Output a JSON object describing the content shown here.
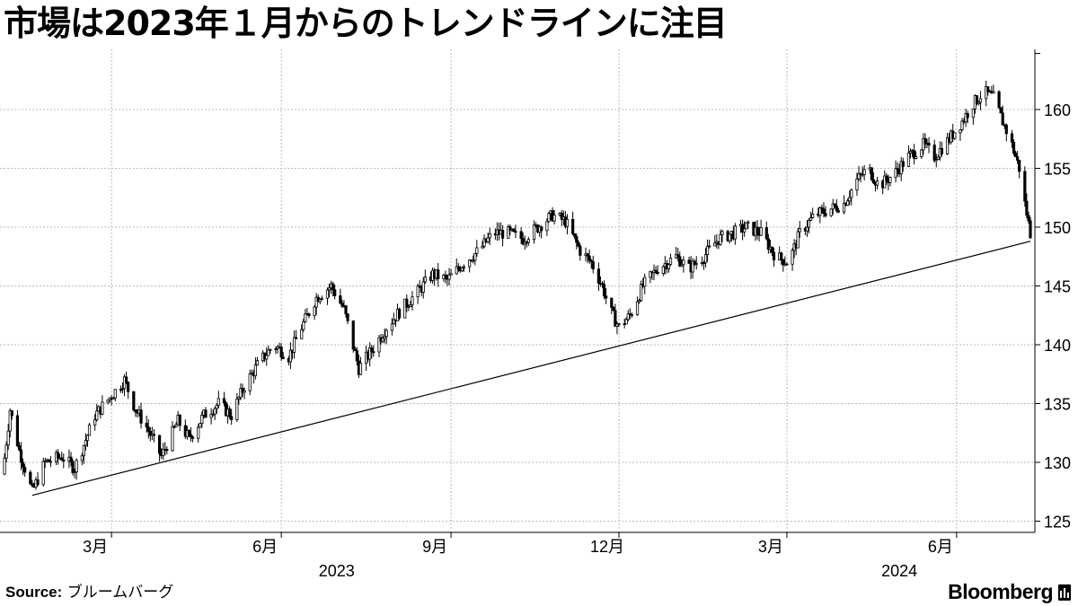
{
  "title": "市場は2023年１月からのトレンドラインに注目",
  "source_label": "Source:",
  "source_value": "ブルームバーグ",
  "brand": "Bloomberg",
  "brand_icon": "bloomberg-terminal-icon",
  "colors": {
    "candle": "#000000",
    "grid": "#bbbbbb",
    "trendline": "#000000",
    "background": "#ffffff"
  },
  "chart_data": {
    "type": "line",
    "subtype": "candlestick",
    "title": "市場は2023年１月からのトレンドラインに注目",
    "xlabel": "",
    "ylabel": "",
    "ylim": [
      124,
      165
    ],
    "yticks": [
      125,
      130,
      135,
      140,
      145,
      150,
      155,
      160
    ],
    "y_axis_position": "right",
    "grid": true,
    "x_range": [
      "2023-01-01",
      "2024-07-11"
    ],
    "x_ticks": [
      {
        "label": "3月",
        "date": "2023-03-01"
      },
      {
        "label": "6月",
        "date": "2023-06-01"
      },
      {
        "label": "9月",
        "date": "2023-09-01"
      },
      {
        "label": "12月",
        "date": "2023-12-01"
      },
      {
        "label": "3月",
        "date": "2024-03-01"
      },
      {
        "label": "6月",
        "date": "2024-06-01"
      }
    ],
    "year_labels": [
      {
        "label": "2023",
        "date": "2023-07-01"
      },
      {
        "label": "2024",
        "date": "2024-05-01"
      }
    ],
    "trendline": {
      "from": {
        "date": "2023-01-17",
        "y": 127.2
      },
      "to": {
        "date": "2024-07-11",
        "y": 148.8
      }
    },
    "price_path": [
      [
        "2023-01-01",
        129.0
      ],
      [
        "2023-01-05",
        134.5
      ],
      [
        "2023-01-10",
        131.0
      ],
      [
        "2023-01-17",
        127.5
      ],
      [
        "2023-01-24",
        130.0
      ],
      [
        "2023-02-02",
        130.5
      ],
      [
        "2023-02-09",
        129.5
      ],
      [
        "2023-02-14",
        131.5
      ],
      [
        "2023-02-20",
        134.0
      ],
      [
        "2023-02-28",
        135.5
      ],
      [
        "2023-03-08",
        137.0
      ],
      [
        "2023-03-14",
        134.5
      ],
      [
        "2023-03-20",
        133.0
      ],
      [
        "2023-03-28",
        130.5
      ],
      [
        "2023-04-03",
        132.5
      ],
      [
        "2023-04-06",
        133.5
      ],
      [
        "2023-04-12",
        132.0
      ],
      [
        "2023-04-20",
        134.0
      ],
      [
        "2023-04-28",
        135.0
      ],
      [
        "2023-05-05",
        134.0
      ],
      [
        "2023-05-12",
        136.5
      ],
      [
        "2023-05-20",
        138.5
      ],
      [
        "2023-05-28",
        140.0
      ],
      [
        "2023-06-05",
        139.0
      ],
      [
        "2023-06-12",
        141.5
      ],
      [
        "2023-06-20",
        144.0
      ],
      [
        "2023-06-28",
        145.0
      ],
      [
        "2023-07-05",
        143.0
      ],
      [
        "2023-07-13",
        138.0
      ],
      [
        "2023-07-20",
        139.5
      ],
      [
        "2023-07-28",
        141.5
      ],
      [
        "2023-08-05",
        143.0
      ],
      [
        "2023-08-14",
        144.5
      ],
      [
        "2023-08-22",
        146.0
      ],
      [
        "2023-08-30",
        145.5
      ],
      [
        "2023-09-08",
        147.0
      ],
      [
        "2023-09-16",
        148.0
      ],
      [
        "2023-09-24",
        149.5
      ],
      [
        "2023-10-02",
        149.5
      ],
      [
        "2023-10-10",
        149.0
      ],
      [
        "2023-10-18",
        150.0
      ],
      [
        "2023-10-26",
        151.0
      ],
      [
        "2023-11-02",
        150.5
      ],
      [
        "2023-11-10",
        148.0
      ],
      [
        "2023-11-16",
        147.0
      ],
      [
        "2023-11-22",
        145.0
      ],
      [
        "2023-11-26",
        143.0
      ],
      [
        "2023-12-01",
        141.5
      ],
      [
        "2023-12-07",
        142.5
      ],
      [
        "2023-12-14",
        145.0
      ],
      [
        "2023-12-22",
        146.5
      ],
      [
        "2024-01-01",
        147.5
      ],
      [
        "2024-01-08",
        146.5
      ],
      [
        "2024-01-16",
        147.5
      ],
      [
        "2024-01-24",
        149.0
      ],
      [
        "2024-02-01",
        149.5
      ],
      [
        "2024-02-08",
        150.0
      ],
      [
        "2024-02-16",
        149.5
      ],
      [
        "2024-02-24",
        147.5
      ],
      [
        "2024-03-02",
        147.0
      ],
      [
        "2024-03-08",
        149.5
      ],
      [
        "2024-03-16",
        151.0
      ],
      [
        "2024-03-24",
        151.5
      ],
      [
        "2024-04-01",
        152.0
      ],
      [
        "2024-04-08",
        154.0
      ],
      [
        "2024-04-14",
        155.0
      ],
      [
        "2024-04-20",
        153.5
      ],
      [
        "2024-04-28",
        154.5
      ],
      [
        "2024-05-06",
        156.0
      ],
      [
        "2024-05-14",
        157.0
      ],
      [
        "2024-05-20",
        156.0
      ],
      [
        "2024-05-28",
        157.5
      ],
      [
        "2024-06-04",
        159.0
      ],
      [
        "2024-06-10",
        160.5
      ],
      [
        "2024-06-16",
        161.5
      ],
      [
        "2024-06-21",
        161.0
      ],
      [
        "2024-06-26",
        159.0
      ],
      [
        "2024-07-01",
        157.0
      ],
      [
        "2024-07-05",
        155.0
      ],
      [
        "2024-07-08",
        152.0
      ],
      [
        "2024-07-11",
        149.5
      ]
    ],
    "note": ""
  }
}
